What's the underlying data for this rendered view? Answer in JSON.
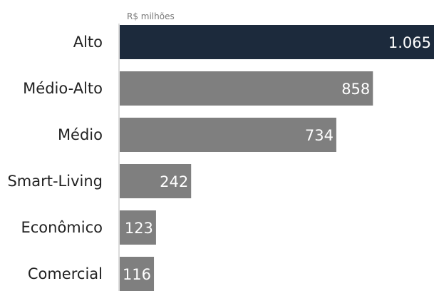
{
  "chart_data": {
    "type": "bar",
    "orientation": "horizontal",
    "unit_label": "R$ milhões",
    "categories": [
      "Alto",
      "Médio-Alto",
      "Médio",
      "Smart-Living",
      "Econômico",
      "Comercial"
    ],
    "values": [
      1065,
      858,
      734,
      242,
      123,
      116
    ],
    "value_labels": [
      "1.065",
      "858",
      "734",
      "242",
      "123",
      "116"
    ],
    "xlim": [
      0,
      1065
    ],
    "grid": false,
    "legend": "none",
    "colors": {
      "highlight": "#1c2a3c",
      "default": "#7f7f7f",
      "axis": "#cfcfcf"
    },
    "highlight_index": 0
  }
}
